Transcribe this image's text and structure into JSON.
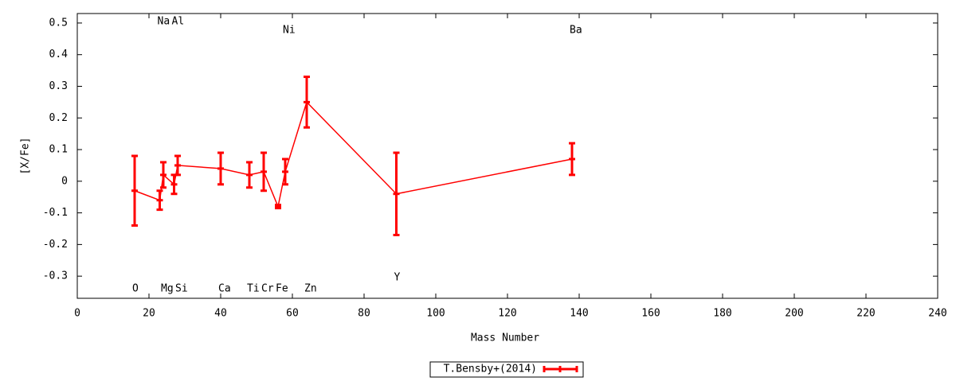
{
  "chart_data": {
    "type": "line",
    "x_label": "Mass Number",
    "y_label": "[X/Fe]",
    "x": [
      16,
      23,
      24,
      27,
      28,
      40,
      48,
      52,
      56,
      58,
      64,
      89,
      138
    ],
    "point_labels": [
      "O",
      "Na",
      "Mg",
      "Al",
      "Si",
      "Ca",
      "Ti",
      "Cr",
      "Fe",
      "Ni",
      "Zn",
      "Y",
      "Ba"
    ],
    "series": [
      {
        "name": "T.Bensby+(2014)",
        "color": "#ff0000",
        "values": [
          -0.03,
          -0.06,
          0.02,
          -0.01,
          0.05,
          0.04,
          0.02,
          0.03,
          -0.08,
          0.03,
          0.25,
          -0.04,
          0.07
        ],
        "errors": [
          0.11,
          0.03,
          0.04,
          0.03,
          0.03,
          0.05,
          0.04,
          0.06,
          0.005,
          0.04,
          0.08,
          0.13,
          0.05
        ]
      }
    ],
    "xlim": [
      0,
      240
    ],
    "ylim": [
      -0.37,
      0.53
    ],
    "xticks": [
      0,
      20,
      40,
      60,
      80,
      100,
      120,
      140,
      160,
      180,
      200,
      220,
      240
    ],
    "yticks": [
      -0.3,
      -0.2,
      -0.1,
      0,
      0.1,
      0.2,
      0.3,
      0.4,
      0.5
    ],
    "grid": false,
    "legend": "bottom"
  }
}
